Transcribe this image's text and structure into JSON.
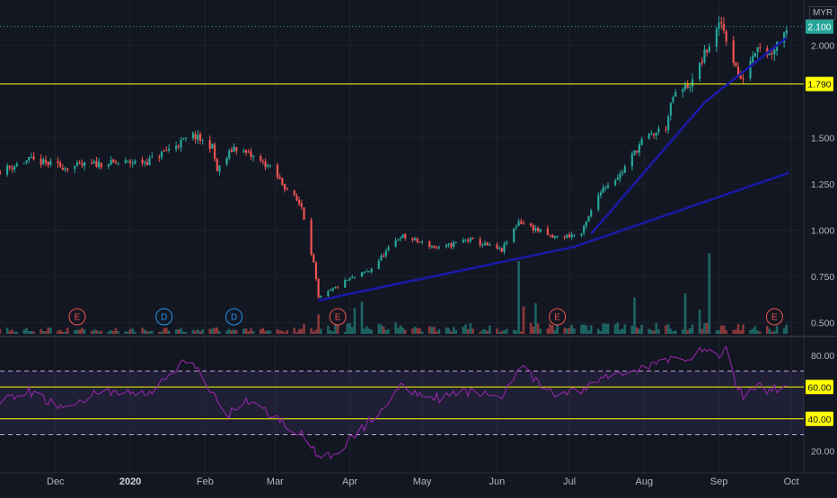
{
  "header": {
    "currency": "MYR"
  },
  "chart_data": {
    "type": "candlestick",
    "instrument_currency": "MYR",
    "price_axis": {
      "range": [
        0.44,
        2.2
      ],
      "ticks": [
        {
          "value": 0.5,
          "label": "0.500"
        },
        {
          "value": 0.75,
          "label": "0.750"
        },
        {
          "value": 1.0,
          "label": "1.000"
        },
        {
          "value": 1.25,
          "label": "1.250"
        },
        {
          "value": 1.5,
          "label": "1.500"
        },
        {
          "value": 2.0,
          "label": "2.000"
        }
      ]
    },
    "price_labels": [
      {
        "value": 2.1,
        "label": "2.100",
        "color": "#26a69a"
      },
      {
        "value": 1.79,
        "label": "1.790",
        "color": "#ffff00"
      }
    ],
    "horizontal_lines": [
      {
        "value": 1.79,
        "color": "#ffff00"
      }
    ],
    "trendlines": [
      {
        "points": [
          [
            "2020-03-19",
            0.62
          ],
          [
            "2020-07-03",
            0.91
          ],
          [
            "2020-09-30",
            1.31
          ]
        ],
        "color": "#1a1aa8"
      },
      {
        "points": [
          [
            "2020-07-10",
            0.98
          ],
          [
            "2020-08-26",
            1.69
          ],
          [
            "2020-09-29",
            2.04
          ]
        ],
        "color": "#1a1aa8"
      }
    ],
    "time_axis": {
      "range": [
        "2019-11-08",
        "2020-10-08"
      ],
      "labels": [
        {
          "date": "2019-12-01",
          "label": "Dec"
        },
        {
          "date": "2020-01-01",
          "label": "2020"
        },
        {
          "date": "2020-02-01",
          "label": "Feb"
        },
        {
          "date": "2020-03-01",
          "label": "Mar"
        },
        {
          "date": "2020-04-01",
          "label": "Apr"
        },
        {
          "date": "2020-05-01",
          "label": "May"
        },
        {
          "date": "2020-06-01",
          "label": "Jun"
        },
        {
          "date": "2020-07-01",
          "label": "Jul"
        },
        {
          "date": "2020-08-01",
          "label": "Aug"
        },
        {
          "date": "2020-09-01",
          "label": "Sep"
        },
        {
          "date": "2020-10-01",
          "label": "Oct"
        }
      ]
    },
    "price_anchors": [
      [
        "2019-11-08",
        1.32
      ],
      [
        "2019-11-20",
        1.38
      ],
      [
        "2019-12-05",
        1.34
      ],
      [
        "2019-12-20",
        1.36
      ],
      [
        "2020-01-08",
        1.37
      ],
      [
        "2020-01-20",
        1.46
      ],
      [
        "2020-01-27",
        1.51
      ],
      [
        "2020-02-04",
        1.45
      ],
      [
        "2020-02-06",
        1.32
      ],
      [
        "2020-02-13",
        1.45
      ],
      [
        "2020-02-27",
        1.35
      ],
      [
        "2020-03-06",
        1.22
      ],
      [
        "2020-03-12",
        1.13
      ],
      [
        "2020-03-17",
        0.82
      ],
      [
        "2020-03-19",
        0.63
      ],
      [
        "2020-03-31",
        0.73
      ],
      [
        "2020-04-09",
        0.78
      ],
      [
        "2020-04-22",
        0.97
      ],
      [
        "2020-05-08",
        0.9
      ],
      [
        "2020-05-20",
        0.95
      ],
      [
        "2020-06-03",
        0.89
      ],
      [
        "2020-06-10",
        1.05
      ],
      [
        "2020-06-24",
        0.96
      ],
      [
        "2020-07-06",
        0.98
      ],
      [
        "2020-07-14",
        1.22
      ],
      [
        "2020-07-22",
        1.3
      ],
      [
        "2020-07-31",
        1.48
      ],
      [
        "2020-08-10",
        1.56
      ],
      [
        "2020-08-13",
        1.72
      ],
      [
        "2020-08-21",
        1.8
      ],
      [
        "2020-08-26",
        1.95
      ],
      [
        "2020-09-02",
        2.12
      ],
      [
        "2020-09-10",
        1.8
      ],
      [
        "2020-09-17",
        2.01
      ],
      [
        "2020-09-22",
        1.95
      ],
      [
        "2020-09-29",
        2.1
      ]
    ],
    "volume": {
      "max_visible": 1.0,
      "spikes": [
        {
          "date": "2020-06-10",
          "value": 0.9
        },
        {
          "date": "2020-08-28",
          "value": 1.0
        },
        {
          "date": "2020-07-28",
          "value": 0.45
        },
        {
          "date": "2020-06-17",
          "value": 0.38
        },
        {
          "date": "2020-04-06",
          "value": 0.4
        },
        {
          "date": "2020-04-03",
          "value": 0.32
        },
        {
          "date": "2020-06-12",
          "value": 0.34
        },
        {
          "date": "2020-03-19",
          "value": 0.24
        },
        {
          "date": "2020-08-18",
          "value": 0.5
        },
        {
          "date": "2020-08-24",
          "value": 0.3
        }
      ]
    },
    "event_markers": [
      {
        "date": "2019-12-10",
        "label": "E",
        "color": "#ef5350"
      },
      {
        "date": "2020-01-15",
        "label": "D",
        "color": "#2196f3"
      },
      {
        "date": "2020-02-13",
        "label": "D",
        "color": "#2196f3"
      },
      {
        "date": "2020-03-27",
        "label": "E",
        "color": "#ef5350"
      },
      {
        "date": "2020-06-26",
        "label": "E",
        "color": "#ef5350"
      },
      {
        "date": "2020-09-24",
        "label": "E",
        "color": "#ef5350"
      }
    ],
    "rsi": {
      "range": [
        10,
        90
      ],
      "ticks": [
        {
          "value": 80,
          "label": "80.00"
        },
        {
          "value": 20,
          "label": "20.00"
        }
      ],
      "level_labels": [
        {
          "value": 60,
          "label": "60.00",
          "color": "#ffff00"
        },
        {
          "value": 40,
          "label": "40.00",
          "color": "#ffff00"
        }
      ],
      "band": [
        30,
        70
      ],
      "line_color": "#9c27b0",
      "anchors": [
        [
          "2019-11-08",
          50
        ],
        [
          "2019-11-20",
          57
        ],
        [
          "2019-12-05",
          46
        ],
        [
          "2019-12-20",
          58
        ],
        [
          "2020-01-08",
          55
        ],
        [
          "2020-01-22",
          74
        ],
        [
          "2020-01-27",
          76
        ],
        [
          "2020-02-04",
          56
        ],
        [
          "2020-02-10",
          42
        ],
        [
          "2020-02-18",
          52
        ],
        [
          "2020-02-28",
          43
        ],
        [
          "2020-03-06",
          36
        ],
        [
          "2020-03-12",
          30
        ],
        [
          "2020-03-17",
          20
        ],
        [
          "2020-03-20",
          13
        ],
        [
          "2020-03-31",
          25
        ],
        [
          "2020-04-09",
          38
        ],
        [
          "2020-04-22",
          60
        ],
        [
          "2020-05-08",
          53
        ],
        [
          "2020-05-20",
          57
        ],
        [
          "2020-06-03",
          54
        ],
        [
          "2020-06-10",
          73
        ],
        [
          "2020-06-24",
          55
        ],
        [
          "2020-07-06",
          58
        ],
        [
          "2020-07-15",
          66
        ],
        [
          "2020-07-31",
          72
        ],
        [
          "2020-08-12",
          77
        ],
        [
          "2020-08-21",
          80
        ],
        [
          "2020-08-27",
          84
        ],
        [
          "2020-09-02",
          79
        ],
        [
          "2020-09-04",
          84
        ],
        [
          "2020-09-08",
          62
        ],
        [
          "2020-09-11",
          55
        ],
        [
          "2020-09-17",
          61
        ],
        [
          "2020-09-22",
          57
        ],
        [
          "2020-09-29",
          62
        ]
      ]
    }
  }
}
